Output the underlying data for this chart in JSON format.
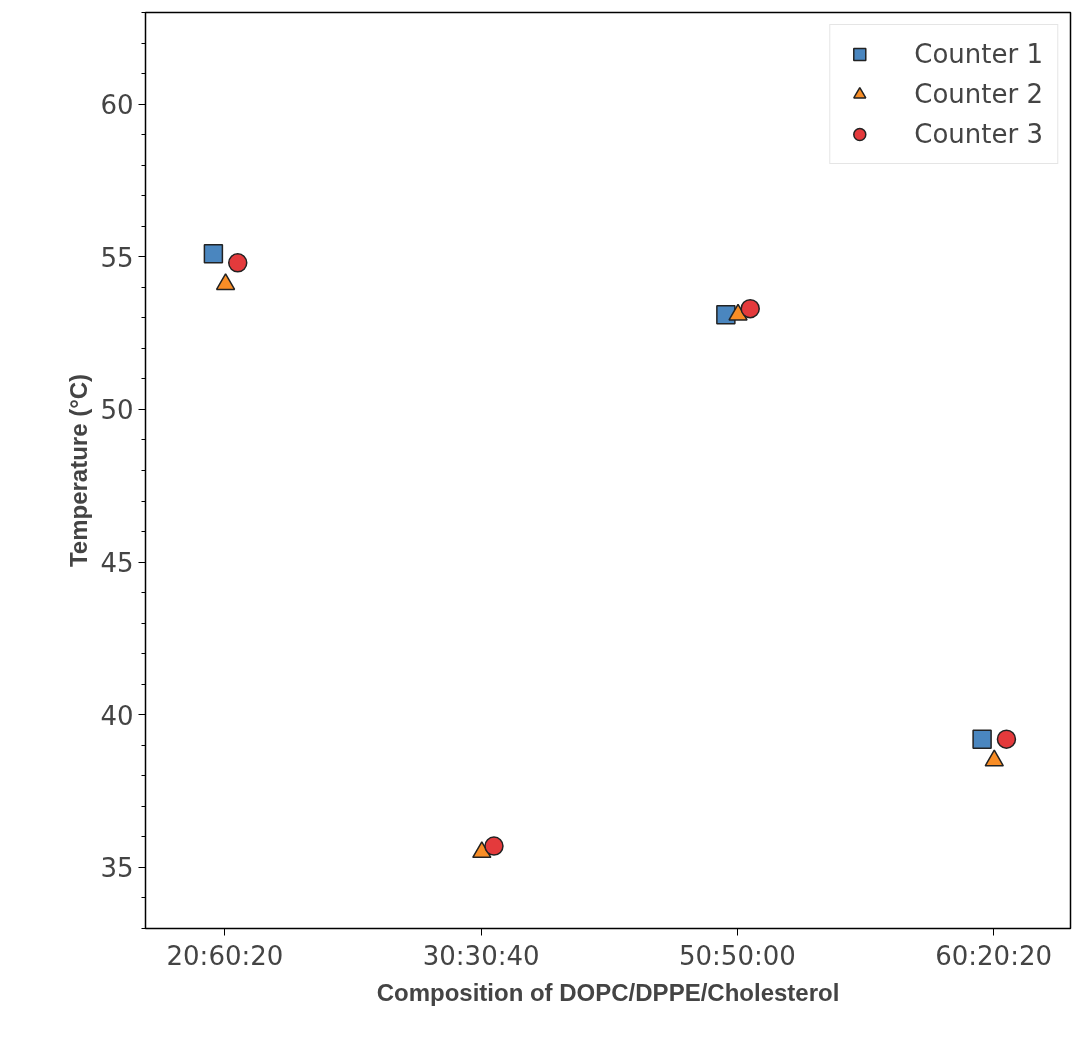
{
  "chart_data": {
    "type": "scatter",
    "xlabel": "Composition of DOPC/DPPE/Cholesterol",
    "ylabel": "Temperature (°C)",
    "categories": [
      "20:60:20",
      "30:30:40",
      "50:50:00",
      "60:20:20"
    ],
    "ylim": [
      33,
      63
    ],
    "yticks": [
      35,
      40,
      45,
      50,
      55,
      60
    ],
    "grid": false,
    "legend": "top right",
    "series": [
      {
        "name": "Counter 1",
        "color": "#4a86bf",
        "marker": "square",
        "values": [
          55.1,
          null,
          53.1,
          39.2
        ]
      },
      {
        "name": "Counter 2",
        "color": "#f88d26",
        "marker": "triangle",
        "values": [
          54.1,
          35.5,
          53.1,
          38.5
        ]
      },
      {
        "name": "Counter 3",
        "color": "#e43a3c",
        "marker": "circle",
        "values": [
          54.8,
          35.7,
          53.3,
          39.2
        ]
      }
    ]
  }
}
